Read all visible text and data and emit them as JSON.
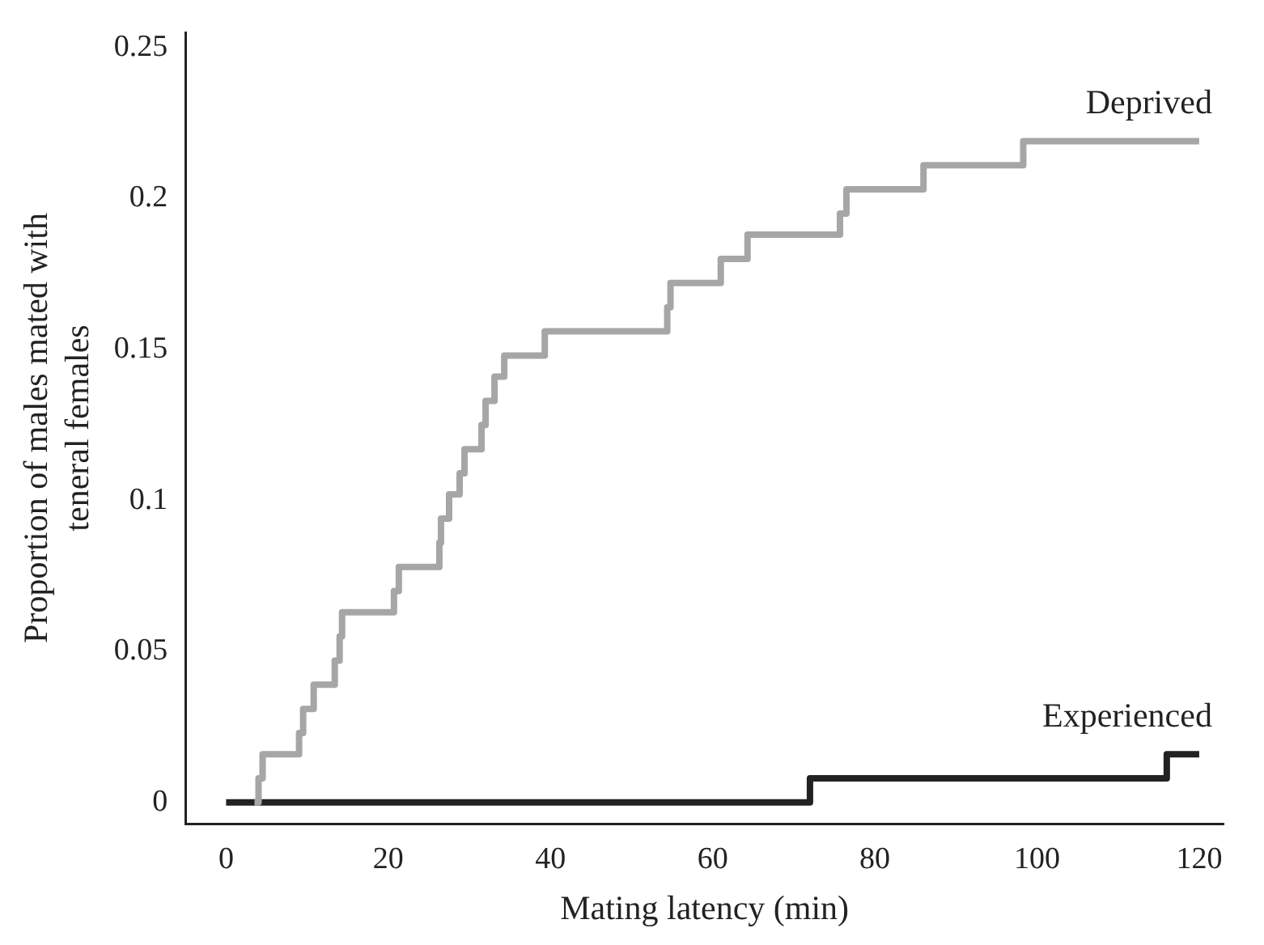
{
  "chart_data": {
    "type": "step",
    "xlabel": "Mating latency (min)",
    "ylabel": "Proportion of males mated with teneral females",
    "xlim": [
      -5,
      123
    ],
    "xticks": [
      0,
      20,
      40,
      60,
      80,
      100,
      120
    ],
    "ylim": [
      -0.007,
      0.255
    ],
    "yticks": [
      0,
      0.05,
      0.1,
      0.15,
      0.2,
      0.25
    ],
    "grid": false,
    "legend": false,
    "marker": "none",
    "line_style": "solid",
    "series": [
      {
        "name": "Deprived",
        "color": "#a6a6a6",
        "x": [
          3.5,
          4,
          4.5,
          9,
          9.5,
          10.8,
          13.4,
          14,
          14.3,
          20.7,
          21.3,
          26.3,
          26.5,
          27.5,
          28.8,
          29.4,
          31.5,
          32,
          33.1,
          34.3,
          39.3,
          54.4,
          54.8,
          61,
          64.3,
          75.7,
          76.5,
          86,
          98.3,
          120
        ],
        "values": [
          0,
          0.008,
          0.016,
          0.023,
          0.031,
          0.039,
          0.047,
          0.055,
          0.063,
          0.07,
          0.078,
          0.086,
          0.094,
          0.102,
          0.109,
          0.117,
          0.125,
          0.133,
          0.141,
          0.148,
          0.156,
          0.164,
          0.172,
          0.18,
          0.188,
          0.195,
          0.203,
          0.211,
          0.219,
          0.219
        ]
      },
      {
        "name": "Experienced",
        "color": "#222222",
        "x": [
          0,
          72,
          116,
          120
        ],
        "values": [
          0,
          0.008,
          0.016,
          0.016
        ]
      }
    ]
  }
}
